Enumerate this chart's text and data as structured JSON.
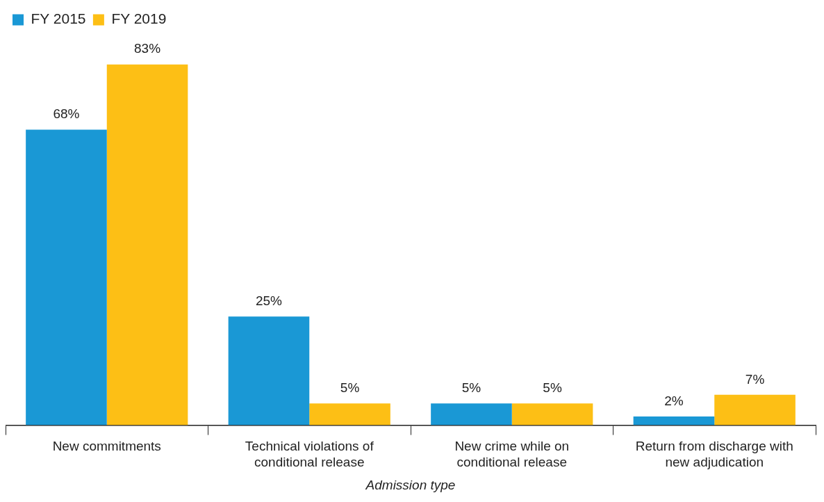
{
  "chart_data": {
    "type": "bar",
    "xlabel": "Admission type",
    "categories": [
      "New commitments",
      "Technical violations of conditional release",
      "New crime while on conditional release",
      "Return from discharge with new adjudication"
    ],
    "series": [
      {
        "name": "FY 2015",
        "color": "#1a98d5",
        "values": [
          68,
          25,
          5,
          2
        ],
        "value_labels": [
          "68%",
          "25%",
          "5%",
          "2%"
        ]
      },
      {
        "name": "FY 2019",
        "color": "#fdbf15",
        "values": [
          83,
          5,
          5,
          7
        ],
        "value_labels": [
          "83%",
          "5%",
          "5%",
          "7%"
        ]
      }
    ],
    "legend": "top left",
    "grid": false
  }
}
